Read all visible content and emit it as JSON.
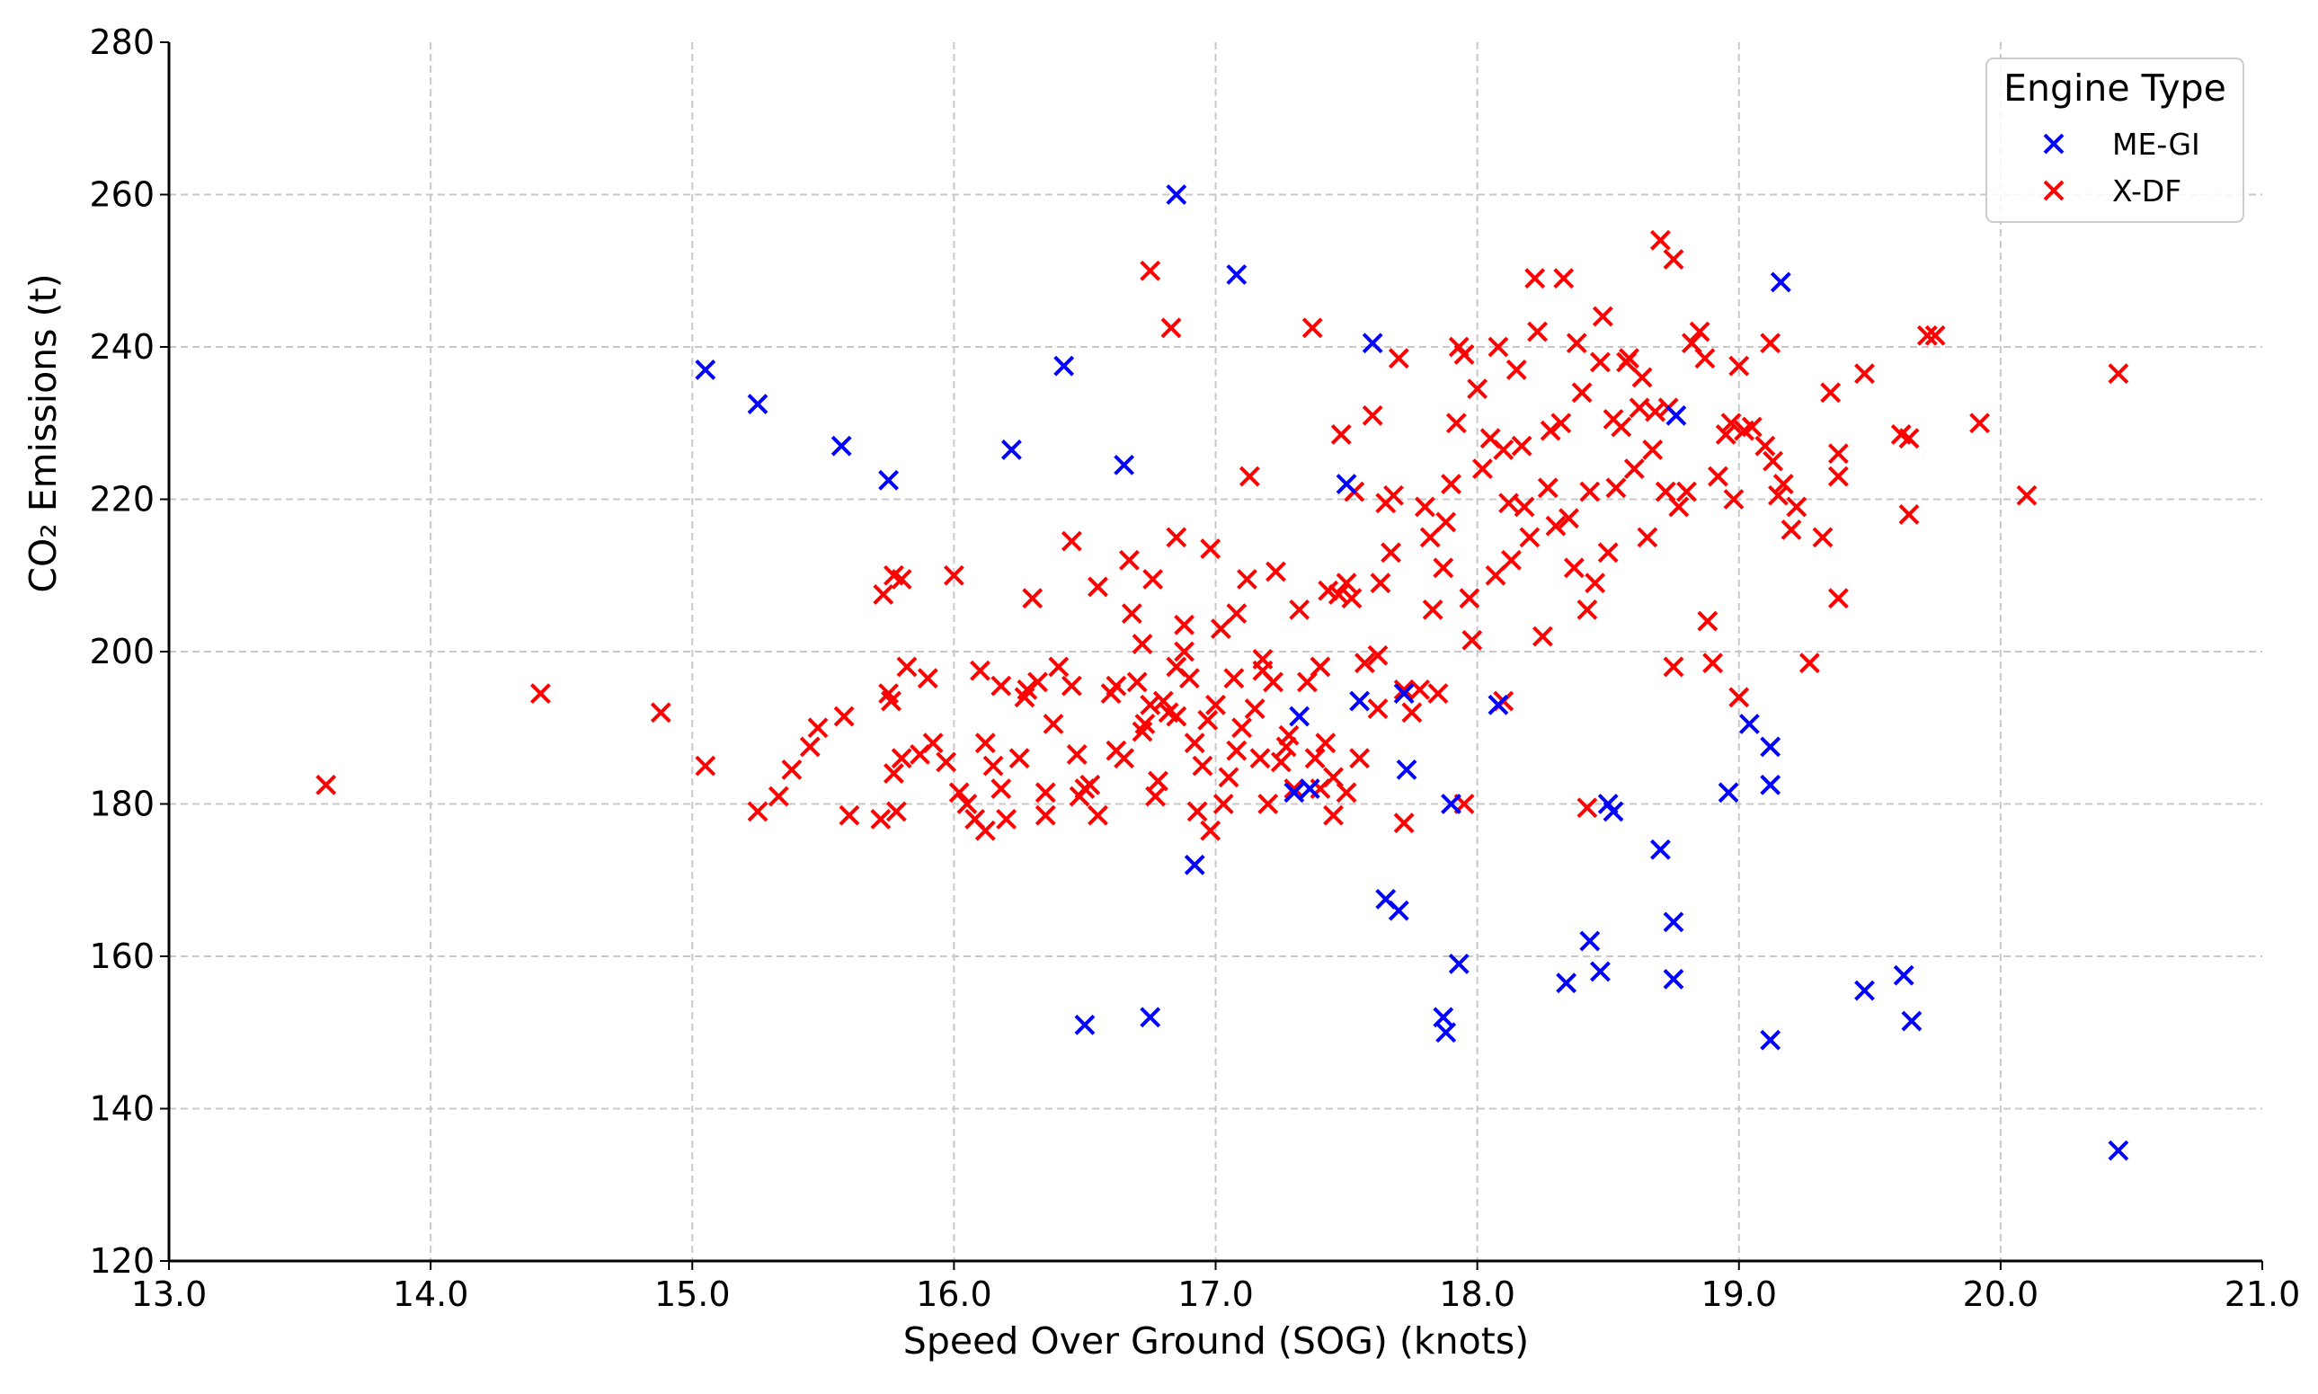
{
  "chart_data": {
    "type": "scatter",
    "xlabel": "Speed Over Ground (SOG) (knots)",
    "ylabel": "CO₂ Emissions (t)",
    "xlim": [
      13.0,
      21.0
    ],
    "ylim": [
      120,
      280
    ],
    "xticks": [
      "13.0",
      "14.0",
      "15.0",
      "16.0",
      "17.0",
      "18.0",
      "19.0",
      "20.0",
      "21.0"
    ],
    "yticks": [
      "120",
      "140",
      "160",
      "180",
      "200",
      "220",
      "240",
      "260",
      "280"
    ],
    "grid": true,
    "legend": {
      "title": "Engine Type",
      "placement": "top-right"
    },
    "marker": "x",
    "series": [
      {
        "name": "ME-GI",
        "color": "#0000ff",
        "points": [
          [
            15.05,
            237
          ],
          [
            15.25,
            232.5
          ],
          [
            15.57,
            227
          ],
          [
            15.75,
            222.5
          ],
          [
            16.22,
            226.5
          ],
          [
            16.42,
            237.5
          ],
          [
            16.65,
            224.5
          ],
          [
            16.85,
            260
          ],
          [
            17.08,
            249.5
          ],
          [
            17.5,
            222
          ],
          [
            17.6,
            240.5
          ],
          [
            17.55,
            193.5
          ],
          [
            17.72,
            194.5
          ],
          [
            17.73,
            184.5
          ],
          [
            17.3,
            181.5
          ],
          [
            17.36,
            182
          ],
          [
            17.32,
            191.5
          ],
          [
            17.9,
            180
          ],
          [
            18.08,
            193
          ],
          [
            16.92,
            172
          ],
          [
            17.65,
            167.5
          ],
          [
            17.7,
            166
          ],
          [
            17.93,
            159
          ],
          [
            17.87,
            152
          ],
          [
            17.88,
            150
          ],
          [
            16.5,
            151
          ],
          [
            16.75,
            152
          ],
          [
            18.5,
            180
          ],
          [
            18.52,
            179
          ],
          [
            18.7,
            174
          ],
          [
            18.75,
            164.5
          ],
          [
            18.43,
            162
          ],
          [
            18.47,
            158
          ],
          [
            18.34,
            156.5
          ],
          [
            18.75,
            157
          ],
          [
            18.96,
            181.5
          ],
          [
            19.04,
            190.5
          ],
          [
            19.12,
            187.5
          ],
          [
            19.12,
            182.5
          ],
          [
            19.16,
            248.5
          ],
          [
            19.12,
            149
          ],
          [
            19.48,
            155.5
          ],
          [
            19.63,
            157.5
          ],
          [
            19.66,
            151.5
          ],
          [
            20.45,
            134.5
          ],
          [
            18.76,
            231
          ]
        ]
      },
      {
        "name": "X-DF",
        "color": "#ff0000",
        "points": [
          [
            13.6,
            182.5
          ],
          [
            14.42,
            194.5
          ],
          [
            14.88,
            192
          ],
          [
            15.05,
            185
          ],
          [
            15.25,
            179
          ],
          [
            15.33,
            181
          ],
          [
            15.38,
            184.5
          ],
          [
            15.45,
            187.5
          ],
          [
            15.48,
            190
          ],
          [
            15.58,
            191.5
          ],
          [
            15.6,
            178.5
          ],
          [
            15.72,
            178
          ],
          [
            15.73,
            207.5
          ],
          [
            15.77,
            210
          ],
          [
            15.8,
            209.5
          ],
          [
            15.75,
            194.5
          ],
          [
            15.76,
            193.5
          ],
          [
            15.77,
            184
          ],
          [
            15.8,
            186
          ],
          [
            15.78,
            179
          ],
          [
            15.82,
            198
          ],
          [
            15.87,
            186.5
          ],
          [
            15.9,
            196.5
          ],
          [
            15.92,
            188
          ],
          [
            15.97,
            185.5
          ],
          [
            16.0,
            210
          ],
          [
            16.02,
            181.5
          ],
          [
            16.05,
            180
          ],
          [
            16.08,
            178
          ],
          [
            16.1,
            197.5
          ],
          [
            16.12,
            176.5
          ],
          [
            16.12,
            188
          ],
          [
            16.15,
            185
          ],
          [
            16.18,
            182
          ],
          [
            16.2,
            178
          ],
          [
            16.18,
            195.5
          ],
          [
            16.25,
            186
          ],
          [
            16.27,
            194
          ],
          [
            16.28,
            195
          ],
          [
            16.3,
            207
          ],
          [
            16.32,
            196
          ],
          [
            16.35,
            178.5
          ],
          [
            16.38,
            190.5
          ],
          [
            16.4,
            198
          ],
          [
            16.45,
            195.5
          ],
          [
            16.47,
            186.5
          ],
          [
            16.48,
            181
          ],
          [
            16.5,
            182
          ],
          [
            16.52,
            182.5
          ],
          [
            16.55,
            178.5
          ],
          [
            16.6,
            194.5
          ],
          [
            16.62,
            195.5
          ],
          [
            16.62,
            187
          ],
          [
            16.65,
            186
          ],
          [
            16.67,
            212
          ],
          [
            16.68,
            205
          ],
          [
            16.7,
            196
          ],
          [
            16.72,
            201
          ],
          [
            16.72,
            189.5
          ],
          [
            16.73,
            190.5
          ],
          [
            16.75,
            193
          ],
          [
            16.77,
            181
          ],
          [
            16.78,
            183
          ],
          [
            16.8,
            193.5
          ],
          [
            16.82,
            192
          ],
          [
            16.85,
            191.5
          ],
          [
            16.85,
            198
          ],
          [
            16.88,
            200
          ],
          [
            16.9,
            196.5
          ],
          [
            16.92,
            188
          ],
          [
            16.93,
            179
          ],
          [
            16.95,
            185
          ],
          [
            16.97,
            191
          ],
          [
            16.98,
            213.5
          ],
          [
            17.0,
            193
          ],
          [
            17.02,
            203
          ],
          [
            17.03,
            180
          ],
          [
            17.05,
            183.5
          ],
          [
            17.07,
            196.5
          ],
          [
            17.08,
            187
          ],
          [
            17.1,
            190
          ],
          [
            17.12,
            209.5
          ],
          [
            17.13,
            223
          ],
          [
            17.15,
            192.5
          ],
          [
            17.17,
            186
          ],
          [
            17.18,
            199
          ],
          [
            17.2,
            180
          ],
          [
            17.22,
            196
          ],
          [
            17.23,
            210.5
          ],
          [
            17.25,
            185.5
          ],
          [
            17.27,
            187.5
          ],
          [
            17.28,
            189
          ],
          [
            17.3,
            182
          ],
          [
            17.32,
            205.5
          ],
          [
            17.35,
            196
          ],
          [
            17.37,
            242.5
          ],
          [
            17.38,
            186
          ],
          [
            17.4,
            198
          ],
          [
            17.42,
            188
          ],
          [
            17.43,
            208
          ],
          [
            17.45,
            183.5
          ],
          [
            17.47,
            207.5
          ],
          [
            17.48,
            228.5
          ],
          [
            17.5,
            209
          ],
          [
            17.52,
            207
          ],
          [
            17.53,
            221
          ],
          [
            17.55,
            186
          ],
          [
            17.57,
            198.5
          ],
          [
            17.6,
            231
          ],
          [
            17.62,
            192.5
          ],
          [
            17.63,
            209
          ],
          [
            17.65,
            219.5
          ],
          [
            17.67,
            213
          ],
          [
            17.68,
            220.5
          ],
          [
            17.7,
            238.5
          ],
          [
            17.72,
            195
          ],
          [
            17.72,
            177.5
          ],
          [
            17.75,
            192
          ],
          [
            17.78,
            195
          ],
          [
            17.8,
            219
          ],
          [
            17.82,
            215
          ],
          [
            17.83,
            205.5
          ],
          [
            17.85,
            194.5
          ],
          [
            17.87,
            211
          ],
          [
            17.88,
            217
          ],
          [
            17.9,
            222
          ],
          [
            17.92,
            230
          ],
          [
            17.93,
            240
          ],
          [
            17.95,
            239
          ],
          [
            17.97,
            207
          ],
          [
            17.98,
            201.5
          ],
          [
            18.0,
            234.5
          ],
          [
            18.02,
            224
          ],
          [
            18.05,
            228
          ],
          [
            18.07,
            210
          ],
          [
            18.08,
            240
          ],
          [
            18.1,
            226.5
          ],
          [
            18.12,
            219.5
          ],
          [
            18.13,
            212
          ],
          [
            18.15,
            237
          ],
          [
            18.17,
            227
          ],
          [
            18.18,
            219
          ],
          [
            18.2,
            215
          ],
          [
            18.22,
            249
          ],
          [
            18.23,
            242
          ],
          [
            18.25,
            202
          ],
          [
            18.27,
            221.5
          ],
          [
            18.28,
            229
          ],
          [
            18.3,
            216.5
          ],
          [
            18.32,
            230
          ],
          [
            18.33,
            249
          ],
          [
            18.35,
            217.5
          ],
          [
            18.37,
            211
          ],
          [
            18.38,
            240.5
          ],
          [
            18.4,
            234
          ],
          [
            18.42,
            205.5
          ],
          [
            18.43,
            221
          ],
          [
            18.45,
            209
          ],
          [
            18.47,
            238
          ],
          [
            18.48,
            244
          ],
          [
            18.5,
            213
          ],
          [
            18.52,
            230.5
          ],
          [
            18.53,
            221.5
          ],
          [
            18.55,
            229.5
          ],
          [
            18.57,
            238
          ],
          [
            18.58,
            238.5
          ],
          [
            18.6,
            224
          ],
          [
            18.62,
            232
          ],
          [
            18.63,
            236
          ],
          [
            18.65,
            215
          ],
          [
            18.67,
            226.5
          ],
          [
            18.68,
            231.5
          ],
          [
            18.7,
            254
          ],
          [
            18.72,
            221
          ],
          [
            18.73,
            232
          ],
          [
            18.75,
            251.5
          ],
          [
            18.77,
            219
          ],
          [
            18.8,
            221
          ],
          [
            18.82,
            240.5
          ],
          [
            18.85,
            242
          ],
          [
            18.87,
            238.5
          ],
          [
            18.88,
            204
          ],
          [
            18.9,
            198.5
          ],
          [
            18.92,
            223
          ],
          [
            18.95,
            228.5
          ],
          [
            18.97,
            230
          ],
          [
            18.98,
            220
          ],
          [
            19.0,
            237.5
          ],
          [
            19.02,
            229
          ],
          [
            19.05,
            229.5
          ],
          [
            19.1,
            227
          ],
          [
            19.12,
            240.5
          ],
          [
            19.13,
            225
          ],
          [
            19.15,
            220.5
          ],
          [
            19.17,
            222
          ],
          [
            19.2,
            216
          ],
          [
            19.22,
            219
          ],
          [
            19.27,
            198.5
          ],
          [
            19.32,
            215
          ],
          [
            19.35,
            234
          ],
          [
            19.38,
            226
          ],
          [
            19.38,
            223
          ],
          [
            19.38,
            207
          ],
          [
            19.48,
            236.5
          ],
          [
            19.62,
            228.5
          ],
          [
            19.65,
            228
          ],
          [
            19.65,
            218
          ],
          [
            19.72,
            241.5
          ],
          [
            19.75,
            241.5
          ],
          [
            19.92,
            230
          ],
          [
            20.1,
            220.5
          ],
          [
            20.45,
            236.5
          ],
          [
            16.75,
            250
          ],
          [
            16.83,
            242.5
          ],
          [
            16.85,
            215
          ],
          [
            16.55,
            208.5
          ],
          [
            16.45,
            214.5
          ],
          [
            16.76,
            209.5
          ],
          [
            18.42,
            179.5
          ],
          [
            17.95,
            180
          ],
          [
            19.0,
            194
          ],
          [
            18.75,
            198
          ],
          [
            17.5,
            181.5
          ],
          [
            17.45,
            178.5
          ],
          [
            16.35,
            181.5
          ],
          [
            16.98,
            176.5
          ],
          [
            17.62,
            199.5
          ],
          [
            18.1,
            193.5
          ],
          [
            17.08,
            205
          ],
          [
            16.88,
            203.5
          ],
          [
            17.18,
            197.5
          ],
          [
            17.4,
            182
          ]
        ]
      }
    ]
  }
}
